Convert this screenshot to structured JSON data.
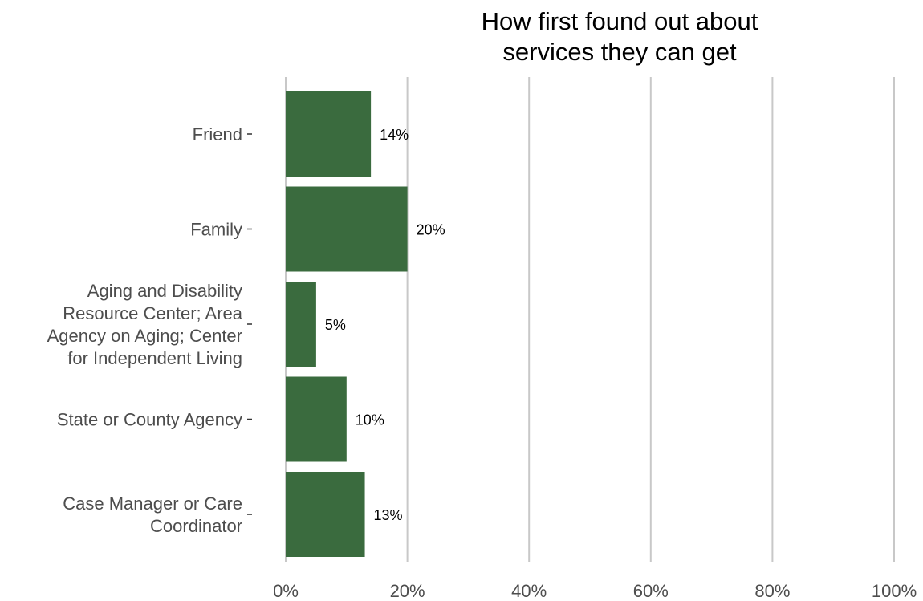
{
  "chart_data": {
    "type": "bar",
    "orientation": "horizontal",
    "title": [
      "How first found out about",
      "services they can get"
    ],
    "categories": [
      [
        "Friend"
      ],
      [
        "Family"
      ],
      [
        "Aging and Disability",
        "Resource Center; Area",
        "Agency on Aging; Center",
        "for Independent Living"
      ],
      [
        "State or County Agency"
      ],
      [
        "Case Manager or Care",
        "Coordinator"
      ]
    ],
    "values": [
      14,
      20,
      5,
      10,
      13
    ],
    "data_labels": [
      "14%",
      "20%",
      "5%",
      "10%",
      "13%"
    ],
    "xlim": [
      0,
      100
    ],
    "x_ticks": [
      0,
      20,
      40,
      60,
      80,
      100
    ],
    "x_tick_labels": [
      "0%",
      "20%",
      "40%",
      "60%",
      "80%",
      "100%"
    ],
    "bar_color": "#3a6b3e",
    "grid": "vertical"
  }
}
